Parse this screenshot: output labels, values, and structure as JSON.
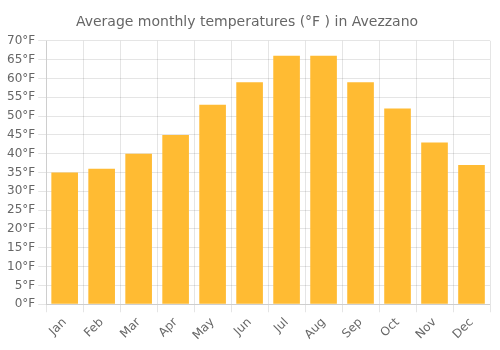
{
  "chart_data": {
    "type": "bar",
    "title": "Average monthly temperatures (°F ) in Avezzano",
    "categories": [
      "Jan",
      "Feb",
      "Mar",
      "Apr",
      "May",
      "Jun",
      "Jul",
      "Aug",
      "Sep",
      "Oct",
      "Nov",
      "Dec"
    ],
    "values": [
      35,
      36,
      40,
      45,
      53,
      59,
      66,
      66,
      59,
      52,
      43,
      37
    ],
    "color": "#FFBB33",
    "ylim": [
      0,
      70
    ],
    "yticks": [
      {
        "value": 0,
        "label": "0°F"
      },
      {
        "value": 5,
        "label": "5°F"
      },
      {
        "value": 10,
        "label": "10°F"
      },
      {
        "value": 15,
        "label": "15°F"
      },
      {
        "value": 20,
        "label": "20°F"
      },
      {
        "value": 25,
        "label": "25°F"
      },
      {
        "value": 30,
        "label": "30°F"
      },
      {
        "value": 35,
        "label": "35°F"
      },
      {
        "value": 40,
        "label": "40°F"
      },
      {
        "value": 45,
        "label": "45°F"
      },
      {
        "value": 50,
        "label": "50°F"
      },
      {
        "value": 55,
        "label": "55°F"
      },
      {
        "value": 60,
        "label": "60°F"
      },
      {
        "value": 65,
        "label": "65°F"
      },
      {
        "value": 70,
        "label": "70°F"
      }
    ],
    "grid": true
  }
}
